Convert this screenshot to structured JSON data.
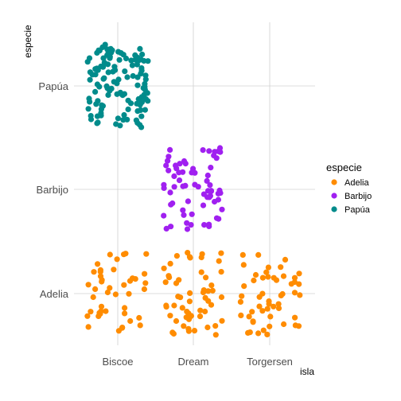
{
  "chart_data": {
    "type": "scatter",
    "title": "",
    "xlabel": "isla",
    "ylabel": "especie",
    "x_categories": [
      "Biscoe",
      "Dream",
      "Torgersen"
    ],
    "y_categories": [
      "Adelia",
      "Barbijo",
      "Papúa"
    ],
    "jitter": {
      "width": 0.4,
      "height": 0.4
    },
    "grid": true,
    "legend": {
      "title": "especie",
      "position": "right",
      "entries": [
        "Adelia",
        "Barbijo",
        "Papúa"
      ]
    },
    "colors": {
      "Adelia": "#ff8c00",
      "Barbijo": "#a020f0",
      "Papúa": "#008b8b"
    },
    "series": [
      {
        "name": "Adelia",
        "island": "Biscoe",
        "count": 44
      },
      {
        "name": "Adelia",
        "island": "Dream",
        "count": 56
      },
      {
        "name": "Adelia",
        "island": "Torgersen",
        "count": 52
      },
      {
        "name": "Barbijo",
        "island": "Dream",
        "count": 68
      },
      {
        "name": "Papúa",
        "island": "Biscoe",
        "count": 124
      }
    ]
  }
}
